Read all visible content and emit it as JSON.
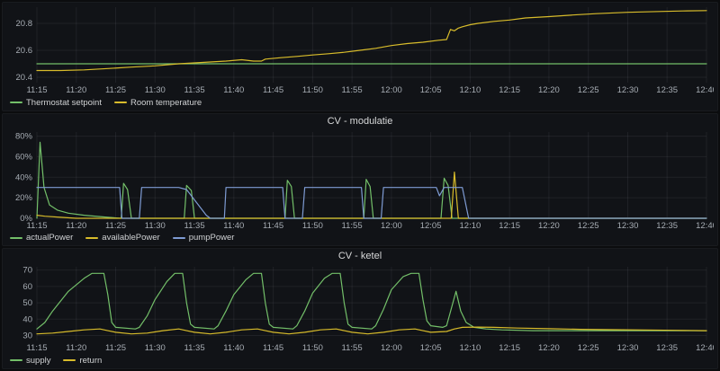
{
  "theme": {
    "page_bg": "#0b0c0e",
    "panel_bg": "#111317",
    "grid_color": "rgba(204,204,220,0.08)",
    "tick_color": "#a7adb4",
    "text_color": "#d8d9da",
    "green": "#73BF69",
    "yellow": "#D8BC2B",
    "blue": "#7E9BD3"
  },
  "chart_data": [
    {
      "type": "line",
      "title": "",
      "legend_position": "bottom-left",
      "grid": true,
      "x_range": [
        675,
        760
      ],
      "x_ticks": [
        [
          675,
          "11:15"
        ],
        [
          680,
          "11:20"
        ],
        [
          685,
          "11:25"
        ],
        [
          690,
          "11:30"
        ],
        [
          695,
          "11:35"
        ],
        [
          700,
          "11:40"
        ],
        [
          705,
          "11:45"
        ],
        [
          710,
          "11:50"
        ],
        [
          715,
          "11:55"
        ],
        [
          720,
          "12:00"
        ],
        [
          725,
          "12:05"
        ],
        [
          730,
          "12:10"
        ],
        [
          735,
          "12:15"
        ],
        [
          740,
          "12:20"
        ],
        [
          745,
          "12:25"
        ],
        [
          750,
          "12:30"
        ],
        [
          755,
          "12:35"
        ],
        [
          760,
          "12:40"
        ]
      ],
      "y_range": [
        20.36,
        20.92
      ],
      "y_ticks": [
        [
          20.4,
          "20.4"
        ],
        [
          20.6,
          "20.6"
        ],
        [
          20.8,
          "20.8"
        ]
      ],
      "series": [
        {
          "name": "Thermostat setpoint",
          "color": "#73BF69",
          "points": [
            [
              675,
              20.5
            ],
            [
              760,
              20.5
            ]
          ]
        },
        {
          "name": "Room temperature",
          "color": "#D8BC2B",
          "points": [
            [
              675,
              20.45
            ],
            [
              678,
              20.45
            ],
            [
              681,
              20.455
            ],
            [
              684,
              20.465
            ],
            [
              687,
              20.475
            ],
            [
              690,
              20.485
            ],
            [
              693,
              20.5
            ],
            [
              696,
              20.51
            ],
            [
              699,
              20.52
            ],
            [
              701,
              20.53
            ],
            [
              702.5,
              20.52
            ],
            [
              703.5,
              20.52
            ],
            [
              704,
              20.535
            ],
            [
              706,
              20.545
            ],
            [
              708,
              20.555
            ],
            [
              710,
              20.565
            ],
            [
              712,
              20.575
            ],
            [
              714,
              20.585
            ],
            [
              716,
              20.6
            ],
            [
              718,
              20.615
            ],
            [
              720,
              20.635
            ],
            [
              722,
              20.65
            ],
            [
              724,
              20.66
            ],
            [
              726,
              20.675
            ],
            [
              727,
              20.68
            ],
            [
              727.5,
              20.755
            ],
            [
              728,
              20.745
            ],
            [
              728.5,
              20.765
            ],
            [
              729,
              20.775
            ],
            [
              730,
              20.79
            ],
            [
              731,
              20.8
            ],
            [
              733,
              20.815
            ],
            [
              735,
              20.825
            ],
            [
              737,
              20.84
            ],
            [
              740,
              20.85
            ],
            [
              743,
              20.862
            ],
            [
              746,
              20.872
            ],
            [
              750,
              20.882
            ],
            [
              754,
              20.888
            ],
            [
              757,
              20.892
            ],
            [
              760,
              20.895
            ]
          ]
        }
      ]
    },
    {
      "type": "line",
      "title": "CV - modulatie",
      "legend_position": "bottom-left",
      "grid": true,
      "x_range": [
        675,
        760
      ],
      "x_ticks": [
        [
          675,
          "11:15"
        ],
        [
          680,
          "11:20"
        ],
        [
          685,
          "11:25"
        ],
        [
          690,
          "11:30"
        ],
        [
          695,
          "11:35"
        ],
        [
          700,
          "11:40"
        ],
        [
          705,
          "11:45"
        ],
        [
          710,
          "11:50"
        ],
        [
          715,
          "11:55"
        ],
        [
          720,
          "12:00"
        ],
        [
          725,
          "12:05"
        ],
        [
          730,
          "12:10"
        ],
        [
          735,
          "12:15"
        ],
        [
          740,
          "12:20"
        ],
        [
          745,
          "12:25"
        ],
        [
          750,
          "12:30"
        ],
        [
          755,
          "12:35"
        ],
        [
          760,
          "12:40"
        ]
      ],
      "y_range": [
        0,
        84
      ],
      "y_ticks": [
        [
          0,
          "0%"
        ],
        [
          20,
          "20%"
        ],
        [
          40,
          "40%"
        ],
        [
          60,
          "60%"
        ],
        [
          80,
          "80%"
        ]
      ],
      "series": [
        {
          "name": "actualPower",
          "color": "#73BF69",
          "points": [
            [
              675,
              0
            ],
            [
              675.4,
              74
            ],
            [
              675.9,
              30
            ],
            [
              676.6,
              13
            ],
            [
              677.6,
              8
            ],
            [
              679,
              5
            ],
            [
              681,
              3
            ],
            [
              684,
              1
            ],
            [
              685.7,
              0
            ],
            [
              686,
              34
            ],
            [
              686.5,
              28
            ],
            [
              687,
              0
            ],
            [
              693.7,
              0
            ],
            [
              694,
              32
            ],
            [
              694.6,
              27
            ],
            [
              695,
              0
            ],
            [
              706.5,
              0
            ],
            [
              706.8,
              37
            ],
            [
              707.3,
              31
            ],
            [
              707.7,
              0
            ],
            [
              716.5,
              0
            ],
            [
              716.8,
              38
            ],
            [
              717.3,
              31
            ],
            [
              717.7,
              0
            ],
            [
              726.3,
              0
            ],
            [
              726.7,
              39
            ],
            [
              727.2,
              32
            ],
            [
              727.7,
              0
            ],
            [
              760,
              0
            ]
          ]
        },
        {
          "name": "availablePower",
          "color": "#D8BC2B",
          "points": [
            [
              675,
              3
            ],
            [
              676,
              2
            ],
            [
              678,
              1
            ],
            [
              680,
              0
            ],
            [
              727.6,
              0
            ],
            [
              728,
              45
            ],
            [
              728.5,
              0
            ],
            [
              760,
              0
            ]
          ]
        },
        {
          "name": "pumpPower",
          "color": "#7E9BD3",
          "points": [
            [
              675,
              30
            ],
            [
              685.5,
              30
            ],
            [
              685.8,
              0
            ],
            [
              688,
              0
            ],
            [
              688.3,
              30
            ],
            [
              693,
              30
            ],
            [
              694,
              28
            ],
            [
              696.5,
              3
            ],
            [
              697,
              0
            ],
            [
              698.8,
              0
            ],
            [
              699,
              30
            ],
            [
              706.2,
              30
            ],
            [
              706.5,
              0
            ],
            [
              708.7,
              0
            ],
            [
              709,
              30
            ],
            [
              716.2,
              30
            ],
            [
              716.5,
              0
            ],
            [
              718.7,
              0
            ],
            [
              719,
              30
            ],
            [
              725.7,
              30
            ],
            [
              726.1,
              22
            ],
            [
              726.7,
              30
            ],
            [
              729,
              30
            ],
            [
              729.8,
              0
            ],
            [
              760,
              0
            ]
          ]
        }
      ]
    },
    {
      "type": "line",
      "title": "CV - ketel",
      "legend_position": "bottom-left",
      "grid": true,
      "x_range": [
        675,
        760
      ],
      "x_ticks": [
        [
          675,
          "11:15"
        ],
        [
          680,
          "11:20"
        ],
        [
          685,
          "11:25"
        ],
        [
          690,
          "11:30"
        ],
        [
          695,
          "11:35"
        ],
        [
          700,
          "11:40"
        ],
        [
          705,
          "11:45"
        ],
        [
          710,
          "11:50"
        ],
        [
          715,
          "11:55"
        ],
        [
          720,
          "12:00"
        ],
        [
          725,
          "12:05"
        ],
        [
          730,
          "12:10"
        ],
        [
          735,
          "12:15"
        ],
        [
          740,
          "12:20"
        ],
        [
          745,
          "12:25"
        ],
        [
          750,
          "12:30"
        ],
        [
          755,
          "12:35"
        ],
        [
          760,
          "12:40"
        ]
      ],
      "y_range": [
        27,
        72
      ],
      "y_ticks": [
        [
          30,
          "30"
        ],
        [
          40,
          "40"
        ],
        [
          50,
          "50"
        ],
        [
          60,
          "60"
        ],
        [
          70,
          "70"
        ]
      ],
      "series": [
        {
          "name": "supply",
          "color": "#73BF69",
          "points": [
            [
              675,
              34
            ],
            [
              676,
              38
            ],
            [
              677,
              45
            ],
            [
              679,
              57
            ],
            [
              681,
              65
            ],
            [
              682,
              68
            ],
            [
              683.5,
              68
            ],
            [
              684,
              55
            ],
            [
              684.5,
              38
            ],
            [
              685,
              35
            ],
            [
              687.5,
              34
            ],
            [
              688,
              35
            ],
            [
              689,
              42
            ],
            [
              690,
              52
            ],
            [
              691.5,
              63
            ],
            [
              692.5,
              68
            ],
            [
              693.5,
              68
            ],
            [
              694,
              50
            ],
            [
              694.5,
              37
            ],
            [
              695,
              35
            ],
            [
              697.5,
              34
            ],
            [
              698,
              36
            ],
            [
              699,
              45
            ],
            [
              700,
              55
            ],
            [
              701.5,
              64
            ],
            [
              702.5,
              68
            ],
            [
              703.5,
              68
            ],
            [
              704,
              50
            ],
            [
              704.5,
              37
            ],
            [
              705,
              35
            ],
            [
              707.5,
              34
            ],
            [
              708,
              36
            ],
            [
              709,
              45
            ],
            [
              710,
              56
            ],
            [
              711.5,
              65
            ],
            [
              712.5,
              68
            ],
            [
              713.5,
              68
            ],
            [
              714,
              50
            ],
            [
              714.5,
              37
            ],
            [
              715,
              35
            ],
            [
              717.5,
              34
            ],
            [
              718,
              36
            ],
            [
              719,
              46
            ],
            [
              720,
              58
            ],
            [
              721.5,
              66
            ],
            [
              722.5,
              68
            ],
            [
              723.5,
              68
            ],
            [
              724,
              52
            ],
            [
              724.5,
              39
            ],
            [
              725,
              36
            ],
            [
              726.5,
              35
            ],
            [
              727,
              36
            ],
            [
              727.8,
              50
            ],
            [
              728.2,
              57
            ],
            [
              728.8,
              45
            ],
            [
              729.5,
              38
            ],
            [
              730.5,
              35
            ],
            [
              732,
              34
            ],
            [
              734,
              33.5
            ],
            [
              738,
              33
            ],
            [
              745,
              33
            ],
            [
              752,
              33
            ],
            [
              760,
              33
            ]
          ]
        },
        {
          "name": "return",
          "color": "#D8BC2B",
          "points": [
            [
              675,
              31
            ],
            [
              677,
              31.5
            ],
            [
              679,
              32.5
            ],
            [
              681,
              33.5
            ],
            [
              683,
              34
            ],
            [
              684,
              33
            ],
            [
              685,
              32
            ],
            [
              687,
              31
            ],
            [
              689,
              31.5
            ],
            [
              691,
              33
            ],
            [
              693,
              34
            ],
            [
              694,
              33
            ],
            [
              695,
              32
            ],
            [
              697,
              31
            ],
            [
              699,
              32
            ],
            [
              701,
              33.5
            ],
            [
              703,
              34
            ],
            [
              704,
              33
            ],
            [
              705,
              32
            ],
            [
              707,
              31
            ],
            [
              709,
              32
            ],
            [
              711,
              33.5
            ],
            [
              713,
              34
            ],
            [
              714,
              33
            ],
            [
              715,
              32
            ],
            [
              717,
              31
            ],
            [
              719,
              32
            ],
            [
              721,
              33.5
            ],
            [
              723,
              34
            ],
            [
              724,
              33
            ],
            [
              725,
              32
            ],
            [
              727,
              32.5
            ],
            [
              728,
              34
            ],
            [
              729,
              35
            ],
            [
              731,
              35.2
            ],
            [
              733,
              35
            ],
            [
              736,
              34.6
            ],
            [
              740,
              34.2
            ],
            [
              744,
              33.8
            ],
            [
              748,
              33.6
            ],
            [
              752,
              33.4
            ],
            [
              756,
              33.2
            ],
            [
              760,
              33
            ]
          ]
        }
      ]
    }
  ]
}
